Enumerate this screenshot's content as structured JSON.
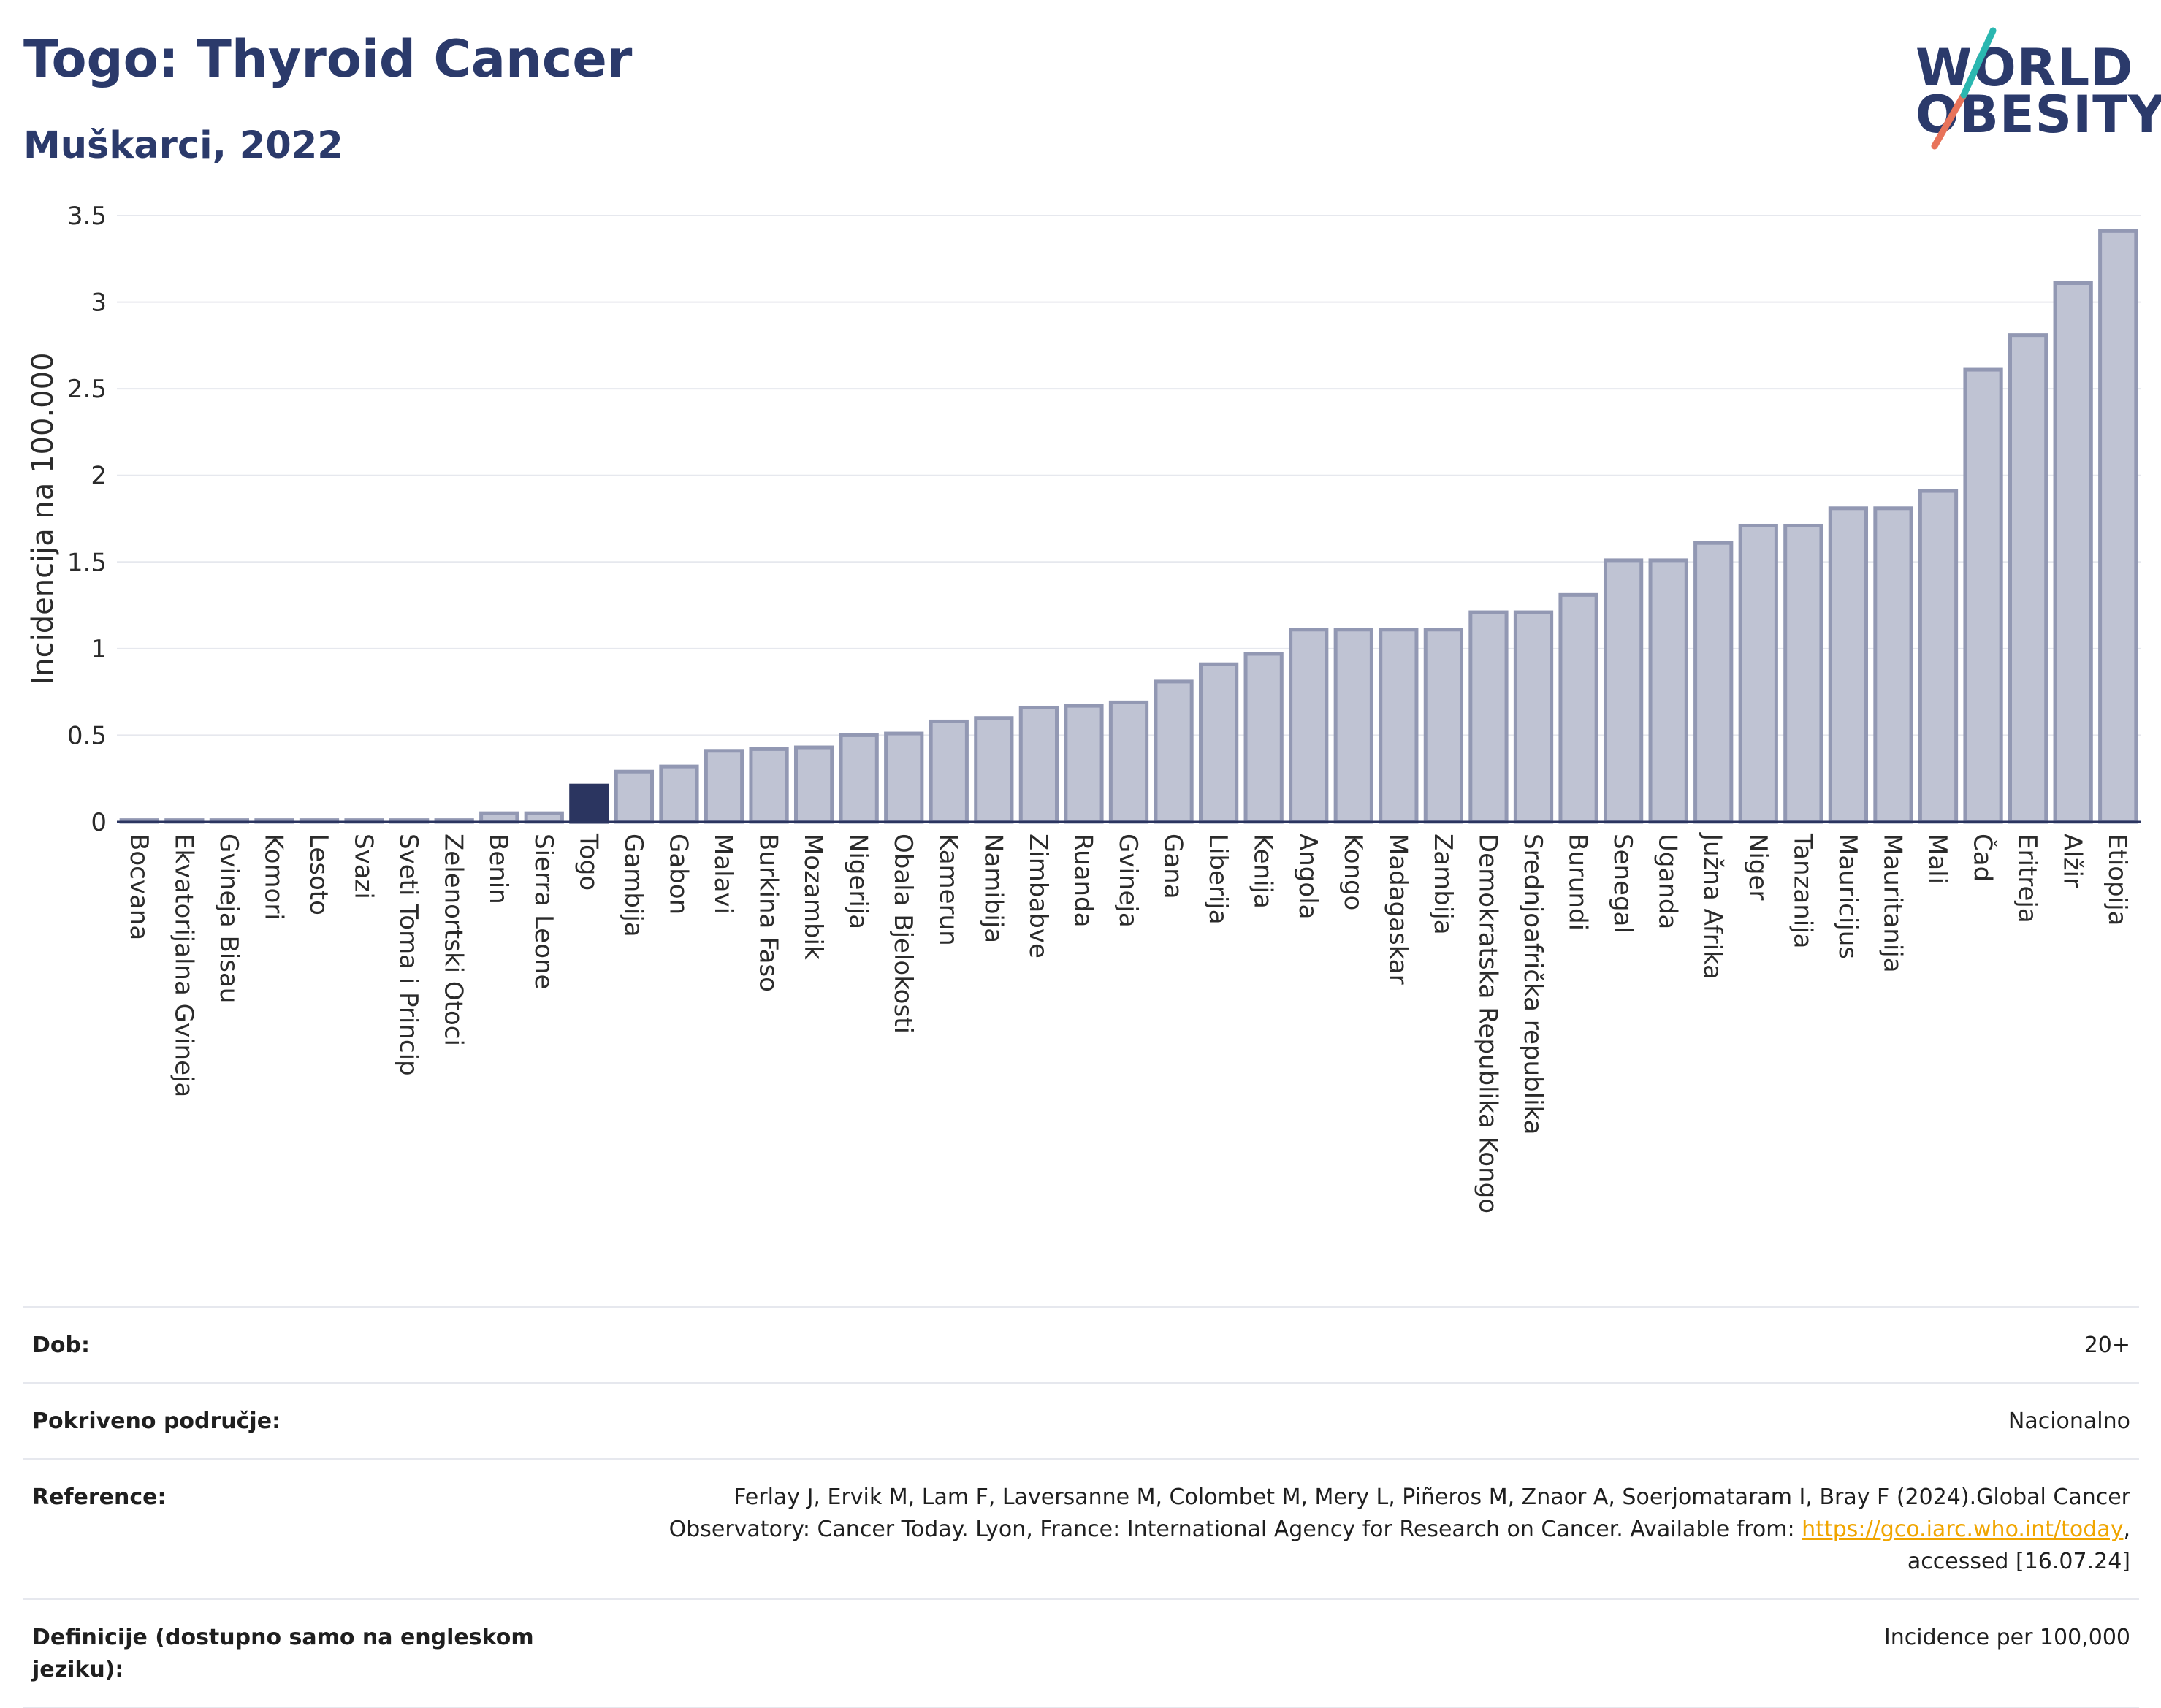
{
  "header": {
    "title": "Togo: Thyroid Cancer",
    "subtitle": "Muškarci, 2022",
    "logo_line1": "WORLD",
    "logo_line2": "OBESITY"
  },
  "colors": {
    "highlight": "#2b3560",
    "bar_fill": "#bfc3d3",
    "bar_stroke": "#9298b3",
    "title": "#2b3a6b",
    "logo_teal": "#2ab7b0",
    "logo_coral": "#e8735a",
    "link": "#f0a500"
  },
  "chart_data": {
    "type": "bar",
    "title": "Togo: Thyroid Cancer",
    "subtitle": "Muškarci, 2022",
    "ylabel": "Incidencija na 100.000",
    "xlabel": "",
    "ylim": [
      0,
      3.5
    ],
    "yticks": [
      0,
      0.5,
      1,
      1.5,
      2,
      2.5,
      3,
      3.5
    ],
    "ytick_labels": [
      "0",
      "0.5",
      "1",
      "1.5",
      "2",
      "2.5",
      "3",
      "3.5"
    ],
    "grid": true,
    "highlight_category": "Togo",
    "categories": [
      "Bocvana",
      "Ekvatorijalna Gvineja",
      "Gvineja Bisau",
      "Komori",
      "Lesoto",
      "Svazi",
      "Sveti Toma i Princip",
      "Zelenortski Otoci",
      "Benin",
      "Sierra Leone",
      "Togo",
      "Gambija",
      "Gabon",
      "Malavi",
      "Burkina Faso",
      "Mozambik",
      "Nigerija",
      "Obala Bjelokosti",
      "Kamerun",
      "Namibija",
      "Zimbabve",
      "Ruanda",
      "Gvineja",
      "Gana",
      "Liberija",
      "Kenija",
      "Angola",
      "Kongo",
      "Madagaskar",
      "Zambija",
      "Demokratska Republika Kongo",
      "Srednjoafrička republika",
      "Burundi",
      "Senegal",
      "Uganda",
      "Južna Afrika",
      "Niger",
      "Tanzanija",
      "Mauricijus",
      "Mauritanija",
      "Mali",
      "Čad",
      "Eritreja",
      "Alžir",
      "Etiopija"
    ],
    "values": [
      0.01,
      0.01,
      0.01,
      0.01,
      0.01,
      0.01,
      0.01,
      0.01,
      0.05,
      0.05,
      0.21,
      0.29,
      0.32,
      0.41,
      0.42,
      0.43,
      0.5,
      0.51,
      0.58,
      0.6,
      0.66,
      0.67,
      0.69,
      0.81,
      0.91,
      0.97,
      1.11,
      1.11,
      1.11,
      1.11,
      1.21,
      1.21,
      1.31,
      1.51,
      1.51,
      1.61,
      1.71,
      1.71,
      1.81,
      1.81,
      1.91,
      2.61,
      2.81,
      3.11,
      3.41
    ]
  },
  "info": {
    "age_label": "Dob:",
    "age_value": "20+",
    "coverage_label": "Pokriveno područje:",
    "coverage_value": "Nacionalno",
    "reference_label": "Reference:",
    "reference_text_1": "Ferlay J, Ervik M, Lam F, Laversanne M, Colombet M, Mery L, Piñeros M, Znaor A, Soerjomataram I, Bray F (2024).Global Cancer",
    "reference_text_2": "Observatory: Cancer Today. Lyon, France: International Agency for Research on Cancer. Available from: ",
    "reference_link": "https://gco.iarc.who.int/today",
    "reference_text_3": ",",
    "reference_text_4": "accessed [16.07.24]",
    "definition_label": "Definicije (dostupno samo na engleskom jeziku):",
    "definition_value": "Incidence per 100,000"
  }
}
